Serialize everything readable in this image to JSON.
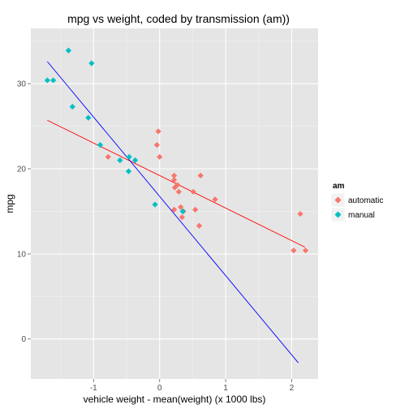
{
  "chart_data": {
    "type": "scatter",
    "title": "mpg vs weight, coded by transmission (am))",
    "xlabel": "vehicle weight - mean(weight) (x 1000 lbs)",
    "ylabel": "mpg",
    "xlim": [
      -1.95,
      2.4
    ],
    "ylim": [
      -4.7,
      36.5
    ],
    "x_ticks": [
      -1,
      0,
      1,
      2
    ],
    "x_tick_labels": [
      "-1",
      "0",
      "1",
      "2"
    ],
    "y_ticks": [
      0,
      10,
      20,
      30
    ],
    "y_tick_labels": [
      "0",
      "10",
      "20",
      "30"
    ],
    "grid": true,
    "legend": {
      "title": "am",
      "position": "right"
    },
    "series": [
      {
        "name": "automatic",
        "color": "#F8766D",
        "marker": "diamond",
        "points": [
          [
            -0.78,
            21.4
          ],
          [
            -0.04,
            22.8
          ],
          [
            -0.02,
            24.4
          ],
          [
            0.0,
            21.4
          ],
          [
            0.22,
            18.7
          ],
          [
            0.22,
            19.2
          ],
          [
            0.23,
            17.8
          ],
          [
            0.22,
            15.2
          ],
          [
            0.27,
            18.1
          ],
          [
            0.29,
            17.3
          ],
          [
            0.32,
            15.5
          ],
          [
            0.34,
            14.3
          ],
          [
            0.36,
            15.0
          ],
          [
            0.51,
            17.3
          ],
          [
            0.54,
            15.2
          ],
          [
            0.6,
            13.3
          ],
          [
            0.62,
            19.2
          ],
          [
            0.84,
            16.4
          ],
          [
            2.03,
            10.4
          ],
          [
            2.13,
            14.7
          ],
          [
            2.21,
            10.4
          ]
        ],
        "fit": {
          "x": [
            -1.7,
            2.2
          ],
          "y": [
            25.7,
            10.8
          ],
          "color": "#FF0000"
        }
      },
      {
        "name": "manual",
        "color": "#00BFC4",
        "marker": "diamond",
        "points": [
          [
            -1.7,
            30.4
          ],
          [
            -1.61,
            30.4
          ],
          [
            -1.38,
            33.9
          ],
          [
            -1.32,
            27.3
          ],
          [
            -1.08,
            26.0
          ],
          [
            -1.03,
            32.4
          ],
          [
            -0.9,
            22.8
          ],
          [
            -0.6,
            21.0
          ],
          [
            -0.47,
            19.7
          ],
          [
            -0.46,
            21.4
          ],
          [
            -0.37,
            21.0
          ],
          [
            -0.07,
            15.8
          ],
          [
            0.35,
            15.0
          ]
        ],
        "fit": {
          "x": [
            -1.7,
            2.1
          ],
          "y": [
            32.6,
            -2.8
          ],
          "color": "#0000FF"
        }
      }
    ]
  }
}
